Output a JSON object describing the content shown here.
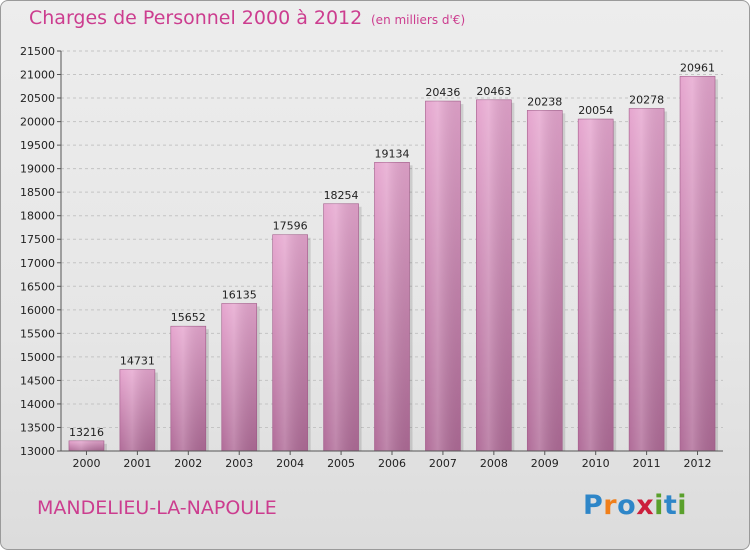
{
  "title": "Charges de Personnel 2000 à 2012",
  "subtitle": "(en milliers d'€)",
  "city": "MANDELIEU-LA-NAPOULE",
  "logo": {
    "letters": [
      "P",
      "r",
      "o",
      "x",
      "i",
      "t",
      "i"
    ],
    "colors": [
      "#2e86c8",
      "#f07f1a",
      "#2e86c8",
      "#cc1f3c",
      "#5aa02c",
      "#2e86c8",
      "#5aa02c"
    ]
  },
  "chart_data": {
    "type": "bar",
    "title": "Charges de Personnel 2000 à 2012",
    "xlabel": "",
    "ylabel": "",
    "categories": [
      "2000",
      "2001",
      "2002",
      "2003",
      "2004",
      "2005",
      "2006",
      "2007",
      "2008",
      "2009",
      "2010",
      "2011",
      "2012"
    ],
    "values": [
      13216,
      14731,
      15652,
      16135,
      17596,
      18254,
      19134,
      20436,
      20463,
      20238,
      20054,
      20278,
      20961
    ],
    "ylim": [
      13000,
      21500
    ],
    "yticks": [
      13000,
      13500,
      14000,
      14500,
      15000,
      15500,
      16000,
      16500,
      17000,
      17500,
      18000,
      18500,
      19000,
      19500,
      20000,
      20500,
      21000,
      21500
    ],
    "grid": true,
    "bar_color": "#d07fb2"
  }
}
